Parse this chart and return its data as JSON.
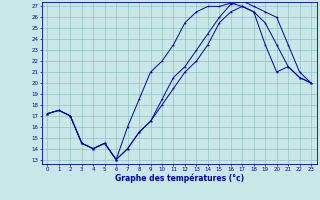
{
  "xlabel": "Graphe des températures (°c)",
  "bg_color": "#c8e8e8",
  "grid_color": "#88bbbb",
  "line_color": "#0000bb",
  "xlim_min": -0.5,
  "xlim_max": 23.5,
  "ylim_min": 12.6,
  "ylim_max": 27.4,
  "xticks": [
    0,
    1,
    2,
    3,
    4,
    5,
    6,
    7,
    8,
    9,
    10,
    11,
    12,
    13,
    14,
    15,
    16,
    17,
    18,
    19,
    20,
    21,
    22,
    23
  ],
  "yticks": [
    13,
    14,
    15,
    16,
    17,
    18,
    19,
    20,
    21,
    22,
    23,
    24,
    25,
    26,
    27
  ],
  "line1_x": [
    0,
    1,
    2,
    3,
    4,
    5,
    6,
    7,
    8,
    9,
    10,
    11,
    12,
    13,
    14,
    15,
    16,
    17,
    18,
    19,
    20,
    21,
    22,
    23
  ],
  "line1_y": [
    17.2,
    17.5,
    17.0,
    14.5,
    14.0,
    14.5,
    13.0,
    16.0,
    18.5,
    21.0,
    22.0,
    23.5,
    25.5,
    26.5,
    27.0,
    27.0,
    27.3,
    27.0,
    26.5,
    23.5,
    21.0,
    21.5,
    20.5,
    20.0
  ],
  "line2_x": [
    0,
    1,
    2,
    3,
    4,
    5,
    6,
    7,
    8,
    9,
    10,
    11,
    12,
    13,
    14,
    15,
    16,
    17,
    18,
    19,
    20,
    21,
    22,
    23
  ],
  "line2_y": [
    17.2,
    17.5,
    17.0,
    14.5,
    14.0,
    14.5,
    13.0,
    14.0,
    15.5,
    16.5,
    18.0,
    19.5,
    21.0,
    22.0,
    23.5,
    25.5,
    26.5,
    27.0,
    26.5,
    25.5,
    23.5,
    21.5,
    20.5,
    20.0
  ],
  "line3_x": [
    0,
    1,
    2,
    3,
    4,
    5,
    6,
    7,
    8,
    9,
    10,
    11,
    12,
    13,
    14,
    15,
    16,
    17,
    18,
    19,
    20,
    21,
    22,
    23
  ],
  "line3_y": [
    17.2,
    17.5,
    17.0,
    14.5,
    14.0,
    14.5,
    13.0,
    14.0,
    15.5,
    16.5,
    18.5,
    20.5,
    21.5,
    23.0,
    24.5,
    26.0,
    27.2,
    27.5,
    27.0,
    26.5,
    26.0,
    23.5,
    21.0,
    20.0
  ]
}
